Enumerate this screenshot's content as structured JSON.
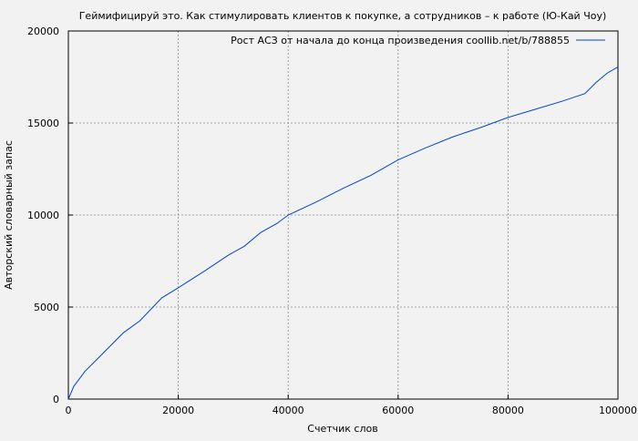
{
  "chart_data": {
    "type": "line",
    "title": "Геймифицируй это. Как стимулировать клиентов к покупке, а сотрудников – к работе (Ю-Кай Чоу)",
    "xlabel": "Счетчик слов",
    "ylabel": "Авторский словарный запас",
    "xlim": [
      0,
      100000
    ],
    "ylim": [
      0,
      20000
    ],
    "xticks": [
      0,
      20000,
      40000,
      60000,
      80000,
      100000
    ],
    "yticks": [
      0,
      5000,
      10000,
      15000,
      20000
    ],
    "grid": true,
    "legend_position": "top-right",
    "series": [
      {
        "name": "Рост АСЗ от начала до конца произведения coollib.net/b/788855",
        "color": "#0044cc",
        "x": [
          0,
          1000,
          3000,
          5000,
          7000,
          10000,
          13000,
          17000,
          20000,
          25000,
          29000,
          32000,
          35000,
          38000,
          40000,
          45000,
          50000,
          55000,
          60000,
          65000,
          70000,
          75000,
          80000,
          85000,
          90000,
          94000,
          96000,
          98000,
          100000
        ],
        "y": [
          0,
          700,
          1500,
          2100,
          2700,
          3600,
          4250,
          5500,
          6050,
          7000,
          7800,
          8300,
          9050,
          9550,
          10000,
          10700,
          11450,
          12150,
          13000,
          13650,
          14250,
          14750,
          15300,
          15750,
          16200,
          16600,
          17200,
          17700,
          18050
        ]
      }
    ]
  }
}
